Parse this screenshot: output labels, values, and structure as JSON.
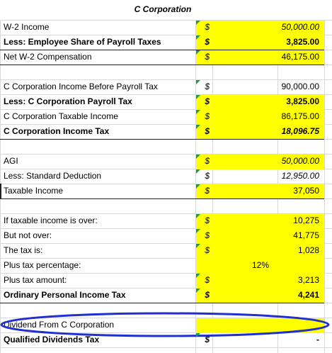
{
  "header": {
    "title": "C Corporation"
  },
  "rows": [
    {
      "label": "W-2 Income",
      "currency": "$",
      "value": "50,000.00"
    },
    {
      "label": "Less: Employee Share of Payroll Taxes",
      "currency": "$",
      "value": "3,825.00"
    },
    {
      "label": "Net W-2 Compensation",
      "currency": "$",
      "value": "46,175.00"
    },
    {
      "label": "C Corporation Income Before Payroll Tax",
      "currency": "$",
      "value": "90,000.00"
    },
    {
      "label": "Less: C Corporation Payroll Tax",
      "currency": "$",
      "value": "3,825.00"
    },
    {
      "label": "C Corporation Taxable Income",
      "currency": "$",
      "value": "86,175.00"
    },
    {
      "label": "C Corporation Income Tax",
      "currency": "$",
      "value": "18,096.75"
    },
    {
      "label": "AGI",
      "currency": "$",
      "value": "50,000.00"
    },
    {
      "label": "Less: Standard Deduction",
      "currency": "$",
      "value": "12,950.00"
    },
    {
      "label": "Taxable Income",
      "currency": "$",
      "value": "37,050"
    },
    {
      "label": "If taxable income is over:",
      "currency": "$",
      "value": "10,275"
    },
    {
      "label": "But not over:",
      "currency": "$",
      "value": "41,775"
    },
    {
      "label": "The tax is:",
      "currency": "$",
      "value": "1,028"
    },
    {
      "label": "Plus tax percentage:",
      "value": "12%"
    },
    {
      "label": "Plus tax amount:",
      "currency": "$",
      "value": "3,213"
    },
    {
      "label": "Ordinary Personal Income Tax",
      "currency": "$",
      "value": "4,241"
    },
    {
      "label": "Dividend From C Corporation"
    },
    {
      "label": "Qualified Dividends Tax",
      "currency": "$",
      "value": "-"
    }
  ]
}
